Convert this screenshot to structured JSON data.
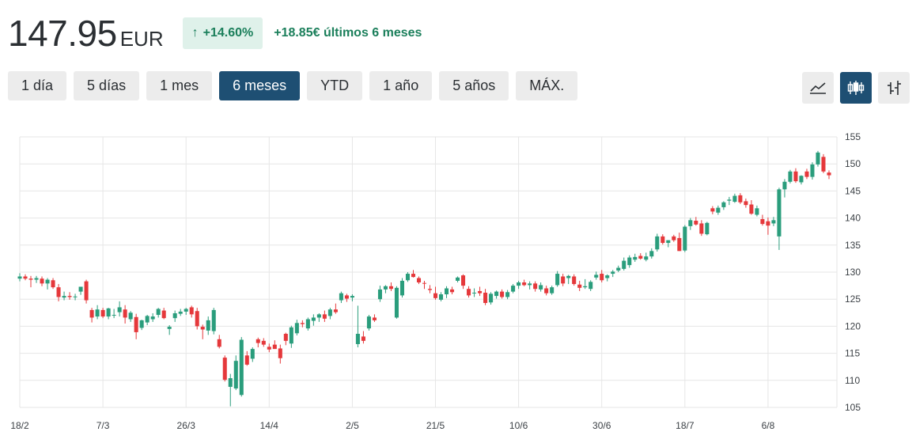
{
  "header": {
    "price": "147.95",
    "currency": "EUR",
    "change_arrow": "↑",
    "change_pct": "+14.60%",
    "change_text": "+18.85€ últimos 6 meses"
  },
  "ranges": [
    {
      "label": "1 día"
    },
    {
      "label": "5 días"
    },
    {
      "label": "1 mes"
    },
    {
      "label": "6 meses",
      "active": true
    },
    {
      "label": "YTD"
    },
    {
      "label": "1 año"
    },
    {
      "label": "5 años"
    },
    {
      "label": "MÁX."
    }
  ],
  "tools": [
    {
      "icon": "line-chart-icon",
      "active": false
    },
    {
      "icon": "candlestick-icon",
      "active": true
    },
    {
      "icon": "ohlc-bars-icon",
      "active": false
    }
  ],
  "colors": {
    "up": "#2a9d7c",
    "down": "#e5383b",
    "accent": "#1e4f73",
    "badge_bg": "#dff1ea",
    "badge_text": "#1b7f5b",
    "grid": "#e6e6e6"
  },
  "chart_data": {
    "type": "candlestick",
    "ylim": [
      105,
      155
    ],
    "y_ticks": [
      105,
      110,
      115,
      120,
      125,
      130,
      135,
      140,
      145,
      150,
      155
    ],
    "x_ticks": [
      {
        "label": "18/2",
        "index": 0
      },
      {
        "label": "7/3",
        "index": 15
      },
      {
        "label": "26/3",
        "index": 30
      },
      {
        "label": "14/4",
        "index": 45
      },
      {
        "label": "2/5",
        "index": 60
      },
      {
        "label": "21/5",
        "index": 75
      },
      {
        "label": "10/6",
        "index": 90
      },
      {
        "label": "30/6",
        "index": 105
      },
      {
        "label": "18/7",
        "index": 120
      },
      {
        "label": "6/8",
        "index": 135
      }
    ],
    "grid": true,
    "ohlc": [
      [
        128.8,
        129.8,
        128.3,
        129.2
      ],
      [
        129.2,
        129.6,
        128.5,
        128.8
      ],
      [
        128.8,
        129.3,
        127.2,
        128.6
      ],
      [
        128.6,
        129.3,
        128.0,
        128.9
      ],
      [
        128.8,
        129.2,
        127.4,
        127.9
      ],
      [
        127.9,
        128.9,
        126.8,
        128.6
      ],
      [
        128.5,
        128.9,
        126.9,
        127.2
      ],
      [
        127.2,
        127.8,
        124.6,
        125.4
      ],
      [
        125.3,
        126.4,
        124.8,
        125.6
      ],
      [
        125.6,
        126.3,
        124.9,
        125.4
      ],
      [
        125.4,
        126.0,
        124.8,
        125.5
      ],
      [
        126.4,
        127.3,
        125.8,
        127.3
      ],
      [
        128.3,
        128.6,
        124.2,
        124.8
      ],
      [
        123.0,
        123.4,
        120.7,
        121.6
      ],
      [
        121.8,
        123.9,
        121.3,
        123.1
      ],
      [
        123.0,
        123.4,
        121.5,
        121.8
      ],
      [
        121.8,
        123.4,
        121.3,
        123.3
      ],
      [
        122.0,
        123.2,
        121.5,
        122.1
      ],
      [
        122.6,
        124.6,
        121.8,
        123.5
      ],
      [
        123.1,
        123.9,
        120.5,
        121.6
      ],
      [
        121.3,
        122.8,
        120.8,
        122.5
      ],
      [
        121.7,
        122.3,
        117.6,
        118.9
      ],
      [
        119.7,
        121.2,
        119.3,
        121.1
      ],
      [
        120.7,
        122.1,
        120.2,
        121.9
      ],
      [
        121.3,
        122.4,
        120.8,
        121.8
      ],
      [
        122.1,
        123.4,
        121.6,
        123.2
      ],
      [
        122.9,
        123.4,
        121.3,
        121.5
      ],
      [
        119.5,
        120.2,
        118.4,
        119.9
      ],
      [
        121.5,
        122.9,
        120.8,
        122.4
      ],
      [
        122.3,
        123.2,
        121.9,
        122.7
      ],
      [
        122.7,
        123.4,
        122.1,
        123.2
      ],
      [
        123.5,
        123.8,
        121.6,
        122.2
      ],
      [
        122.8,
        123.4,
        119.4,
        120.0
      ],
      [
        119.9,
        120.3,
        117.6,
        119.4
      ],
      [
        119.2,
        121.8,
        118.4,
        121.1
      ],
      [
        119.1,
        123.4,
        118.5,
        123.0
      ],
      [
        117.6,
        118.4,
        115.9,
        116.2
      ],
      [
        114.2,
        114.6,
        109.8,
        110.1
      ],
      [
        108.8,
        111.2,
        105.2,
        110.4
      ],
      [
        108.5,
        114.6,
        108.2,
        113.6
      ],
      [
        107.3,
        118.0,
        107.0,
        117.5
      ],
      [
        114.6,
        115.4,
        112.7,
        112.9
      ],
      [
        114.0,
        116.1,
        113.4,
        115.8
      ],
      [
        117.6,
        117.9,
        116.1,
        116.9
      ],
      [
        117.3,
        117.8,
        116.2,
        116.6
      ],
      [
        116.2,
        116.8,
        115.2,
        115.7
      ],
      [
        116.6,
        117.4,
        115.8,
        115.8
      ],
      [
        115.9,
        116.6,
        113.1,
        114.1
      ],
      [
        118.6,
        118.8,
        116.5,
        117.3
      ],
      [
        116.8,
        120.1,
        116.0,
        119.8
      ],
      [
        118.7,
        121.2,
        118.3,
        120.6
      ],
      [
        120.6,
        121.1,
        119.8,
        120.4
      ],
      [
        119.6,
        121.6,
        119.2,
        121.3
      ],
      [
        121.0,
        122.2,
        120.1,
        121.6
      ],
      [
        121.6,
        122.4,
        120.8,
        122.2
      ],
      [
        122.2,
        122.9,
        120.8,
        121.4
      ],
      [
        121.9,
        123.4,
        121.3,
        123.1
      ],
      [
        123.1,
        124.2,
        122.3,
        122.6
      ],
      [
        124.8,
        126.4,
        124.3,
        126.1
      ],
      [
        125.7,
        126.0,
        124.5,
        125.1
      ],
      [
        125.3,
        125.9,
        124.6,
        125.6
      ],
      [
        116.7,
        123.8,
        116.1,
        118.6
      ],
      [
        118.1,
        119.1,
        116.8,
        117.3
      ],
      [
        119.6,
        122.1,
        119.2,
        121.8
      ],
      [
        121.6,
        122.2,
        120.8,
        121.1
      ],
      [
        125.0,
        127.5,
        124.5,
        126.8
      ],
      [
        126.8,
        127.6,
        126.1,
        127.4
      ],
      [
        127.4,
        128.1,
        126.5,
        126.9
      ],
      [
        121.6,
        127.4,
        121.4,
        127.1
      ],
      [
        125.7,
        128.9,
        125.3,
        128.4
      ],
      [
        128.5,
        130.0,
        128.2,
        129.7
      ],
      [
        129.7,
        130.4,
        129.0,
        129.1
      ],
      [
        128.9,
        129.2,
        127.8,
        128.1
      ],
      [
        128.0,
        128.4,
        126.9,
        127.9
      ],
      [
        126.9,
        127.6,
        126.1,
        126.7
      ],
      [
        126.1,
        127.3,
        124.9,
        125.2
      ],
      [
        124.9,
        126.3,
        124.6,
        125.9
      ],
      [
        125.9,
        127.4,
        125.2,
        127.0
      ],
      [
        126.8,
        127.3,
        125.9,
        126.3
      ],
      [
        128.4,
        129.2,
        128.1,
        129.0
      ],
      [
        129.4,
        129.6,
        126.9,
        127.5
      ],
      [
        126.9,
        127.4,
        125.3,
        125.7
      ],
      [
        126.2,
        127.0,
        125.4,
        126.2
      ],
      [
        126.5,
        127.3,
        125.6,
        126.1
      ],
      [
        126.2,
        126.9,
        123.9,
        124.3
      ],
      [
        124.4,
        126.3,
        124.0,
        126.0
      ],
      [
        125.6,
        126.6,
        125.1,
        126.4
      ],
      [
        126.4,
        126.8,
        125.1,
        125.4
      ],
      [
        125.4,
        126.7,
        125.0,
        126.3
      ],
      [
        126.4,
        127.8,
        126.1,
        127.5
      ],
      [
        127.5,
        128.4,
        126.9,
        128.1
      ],
      [
        128.1,
        128.6,
        127.4,
        127.6
      ],
      [
        127.6,
        128.3,
        126.8,
        127.9
      ],
      [
        127.9,
        128.3,
        126.4,
        126.9
      ],
      [
        126.8,
        128.1,
        126.4,
        127.6
      ],
      [
        127.0,
        127.5,
        125.7,
        126.1
      ],
      [
        126.1,
        127.5,
        125.8,
        127.2
      ],
      [
        127.6,
        130.2,
        127.3,
        129.7
      ],
      [
        129.2,
        129.7,
        127.4,
        127.9
      ],
      [
        128.9,
        129.5,
        127.8,
        129.3
      ],
      [
        129.2,
        129.6,
        127.5,
        127.8
      ],
      [
        127.7,
        128.4,
        126.5,
        127.1
      ],
      [
        127.2,
        128.7,
        126.9,
        127.4
      ],
      [
        126.9,
        128.5,
        126.5,
        128.2
      ],
      [
        129.0,
        130.1,
        128.6,
        129.5
      ],
      [
        129.7,
        130.4,
        128.1,
        128.5
      ],
      [
        128.9,
        129.6,
        128.3,
        129.4
      ],
      [
        129.7,
        130.4,
        129.1,
        130.1
      ],
      [
        130.3,
        131.2,
        130.0,
        130.8
      ],
      [
        130.6,
        132.7,
        130.3,
        132.1
      ],
      [
        131.3,
        133.1,
        130.8,
        132.7
      ],
      [
        132.3,
        133.4,
        131.9,
        132.8
      ],
      [
        133.0,
        133.5,
        132.3,
        132.5
      ],
      [
        132.3,
        133.6,
        132.0,
        132.9
      ],
      [
        132.9,
        134.4,
        132.5,
        133.9
      ],
      [
        134.2,
        137.1,
        133.8,
        136.6
      ],
      [
        136.6,
        137.0,
        135.1,
        135.4
      ],
      [
        135.4,
        135.9,
        134.6,
        135.9
      ],
      [
        136.6,
        136.9,
        135.6,
        135.9
      ],
      [
        136.3,
        137.3,
        133.9,
        133.9
      ],
      [
        134.0,
        138.7,
        133.7,
        138.4
      ],
      [
        138.5,
        140.0,
        137.8,
        139.6
      ],
      [
        139.5,
        140.2,
        138.6,
        138.8
      ],
      [
        139.0,
        139.6,
        136.7,
        137.1
      ],
      [
        137.0,
        139.3,
        136.8,
        139.1
      ],
      [
        141.8,
        142.2,
        140.7,
        141.2
      ],
      [
        141.0,
        142.3,
        140.6,
        141.9
      ],
      [
        142.0,
        143.1,
        141.5,
        142.9
      ],
      [
        143.2,
        143.9,
        142.4,
        143.4
      ],
      [
        143.0,
        144.5,
        142.8,
        144.1
      ],
      [
        144.2,
        144.6,
        142.6,
        142.9
      ],
      [
        143.1,
        143.6,
        141.9,
        142.4
      ],
      [
        142.5,
        143.3,
        140.6,
        140.8
      ],
      [
        140.6,
        142.3,
        140.3,
        141.8
      ],
      [
        139.8,
        140.6,
        138.6,
        138.9
      ],
      [
        139.4,
        140.1,
        136.9,
        138.6
      ],
      [
        139.0,
        140.2,
        138.5,
        139.6
      ],
      [
        136.6,
        145.6,
        134.1,
        145.3
      ],
      [
        145.3,
        147.2,
        143.8,
        146.7
      ],
      [
        146.7,
        148.9,
        146.4,
        148.6
      ],
      [
        148.6,
        149.2,
        146.5,
        146.8
      ],
      [
        146.6,
        147.9,
        146.2,
        147.8
      ],
      [
        148.6,
        149.1,
        147.2,
        147.6
      ],
      [
        147.6,
        150.3,
        147.1,
        149.9
      ],
      [
        149.9,
        152.4,
        149.5,
        152.1
      ],
      [
        151.3,
        151.8,
        148.3,
        148.6
      ],
      [
        148.4,
        148.8,
        147.2,
        147.9
      ]
    ]
  }
}
